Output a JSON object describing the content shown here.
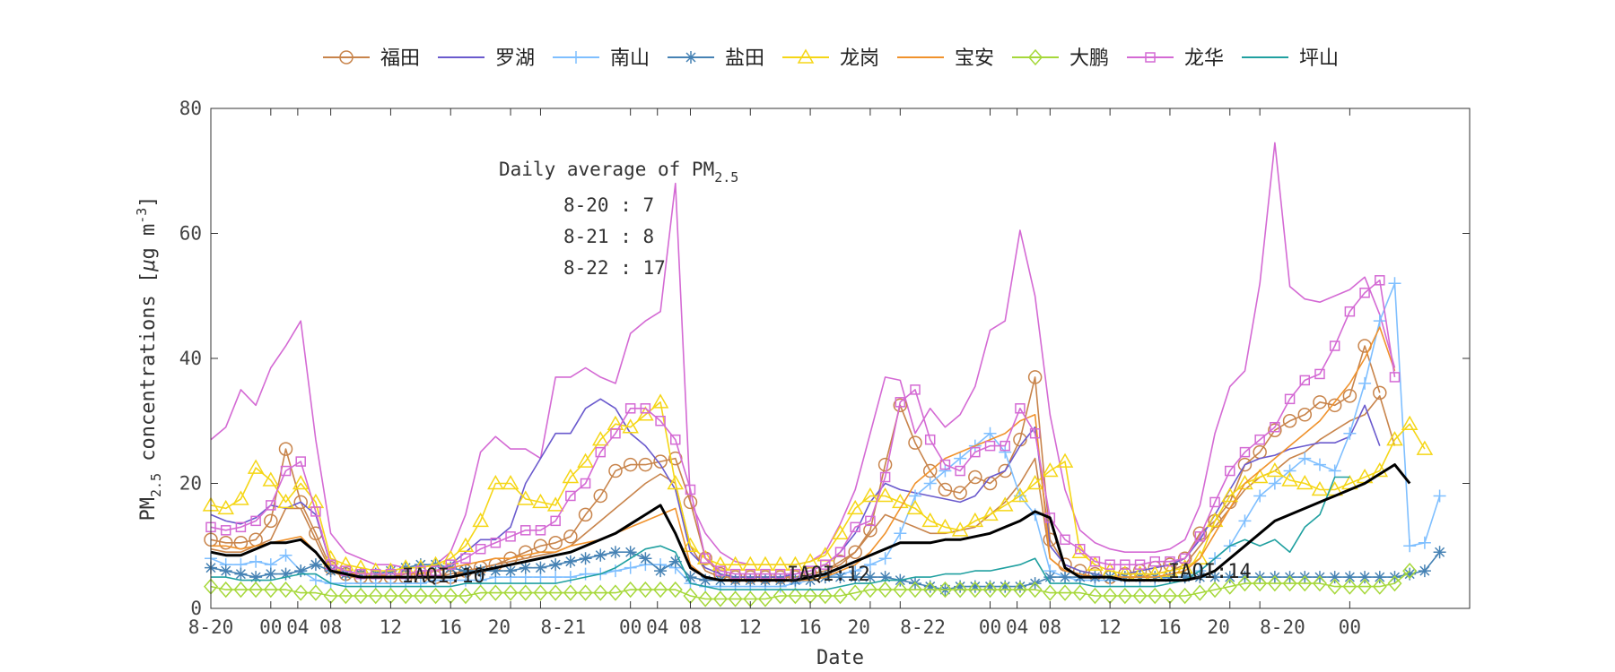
{
  "chart_data": {
    "type": "line",
    "xlabel": "Date",
    "ylabel_main": "PM",
    "ylabel_sub": "2.5",
    "ylabel_rest": " concentrations [",
    "ylabel_mu": "μ",
    "ylabel_unit": "g m",
    "ylabel_exp": "-3",
    "ylabel_close": "]",
    "ylim": [
      0,
      80
    ],
    "yticks": [
      0,
      20,
      40,
      60,
      80
    ],
    "xlim": [
      0,
      84
    ],
    "xtick_labels": [
      "8-20",
      "00",
      "04",
      "08",
      "12",
      "16",
      "20",
      "8-21",
      "00",
      "04",
      "08",
      "12",
      "16",
      "20",
      "8-22",
      "00",
      "04",
      "08",
      "12",
      "16",
      "20",
      "8-20",
      "00"
    ],
    "grid": false,
    "legend_position": "top",
    "annotation": {
      "title_main": "Daily average of PM",
      "title_sub": "2.5",
      "lines": [
        "8-20 : 7",
        "8-21 : 8",
        "8-22 : 17"
      ]
    },
    "iaqi_labels": [
      "IAQI:10",
      "IAQI:12",
      "IAQI:14"
    ],
    "series": [
      {
        "name": "福田",
        "color": "#c8844b",
        "marker": "circle",
        "values": [
          11,
          10.5,
          10.5,
          11,
          14,
          25.5,
          17,
          12,
          6.5,
          5.5,
          5,
          5,
          5,
          5,
          5,
          5,
          5,
          6,
          6.5,
          7,
          8,
          9,
          10,
          10.5,
          11.5,
          15,
          18,
          22,
          23,
          23,
          23.5,
          24,
          17,
          8,
          5.5,
          5,
          5,
          5,
          5,
          5,
          5.5,
          6,
          7.5,
          9,
          12.5,
          23,
          32.5,
          26.5,
          22,
          19,
          18.5,
          21,
          20,
          22,
          27,
          37,
          11,
          7,
          6,
          5.5,
          5,
          5.5,
          6,
          6.5,
          7,
          8,
          12,
          14,
          17,
          23,
          25,
          28.5,
          30,
          31,
          33,
          32.5,
          34,
          42,
          34.5
        ]
      },
      {
        "name": "罗湖",
        "color": "#6a5acd",
        "marker": "none",
        "values": [
          15,
          14,
          13.5,
          14.5,
          16.5,
          16,
          17,
          15,
          7,
          6,
          5.5,
          5.5,
          5,
          5.5,
          6,
          6,
          7,
          9,
          11,
          11,
          13,
          20,
          24,
          28,
          28,
          32,
          33.5,
          32,
          28,
          26,
          23,
          19,
          9,
          6.5,
          5.5,
          5,
          5,
          5,
          5,
          5.5,
          6,
          7,
          9,
          12,
          17,
          20,
          19,
          18.5,
          18,
          17.5,
          17,
          18,
          21,
          22,
          26,
          29,
          10,
          7,
          6,
          5.5,
          5,
          5.5,
          6,
          6.5,
          7,
          8,
          11,
          15,
          19,
          23,
          24,
          24.5,
          25.5,
          26,
          26.5,
          26.5,
          27.5,
          32.5,
          26
        ]
      },
      {
        "name": "南山",
        "color": "#7fbfff",
        "marker": "plus",
        "values": [
          8,
          7,
          7,
          7.5,
          7,
          8.5,
          6,
          4.5,
          4,
          4,
          4,
          4,
          4,
          4,
          4,
          4.5,
          4.5,
          4.5,
          4.5,
          5,
          5,
          5,
          5,
          5,
          5,
          5.5,
          5.5,
          6,
          6.5,
          7,
          7,
          6.5,
          4,
          3.5,
          3.5,
          3.5,
          3.5,
          3.5,
          3.5,
          4,
          4.5,
          5,
          5.5,
          6,
          7,
          8,
          12,
          18,
          20,
          22,
          24,
          26,
          28,
          25,
          18,
          15,
          6,
          5,
          4.5,
          4.5,
          4.5,
          4.5,
          4.5,
          4.5,
          5,
          5,
          6,
          8,
          10,
          14,
          18,
          20,
          22,
          24,
          23,
          22,
          28,
          36,
          46,
          52,
          10,
          10.5,
          18
        ]
      },
      {
        "name": "盐田",
        "color": "#4682b4",
        "marker": "asterisk",
        "values": [
          6.5,
          6,
          5.5,
          5,
          5.5,
          5.5,
          6,
          7,
          6,
          5.5,
          5.5,
          5.5,
          6,
          6.5,
          7,
          7,
          6.5,
          6,
          6,
          6,
          6,
          6.5,
          6.5,
          7,
          7.5,
          8,
          8.5,
          9,
          9,
          8,
          6,
          7.5,
          5,
          4.5,
          4.5,
          4.5,
          4.5,
          4.5,
          4.5,
          4.5,
          4.5,
          5,
          5,
          5,
          5,
          5,
          4.5,
          4,
          3.5,
          3,
          3.5,
          3.5,
          3.5,
          3.5,
          3.5,
          4,
          5,
          5,
          5,
          5,
          5,
          5,
          5,
          5,
          5,
          5,
          5,
          5,
          5,
          5,
          5,
          5,
          5,
          5,
          5,
          5,
          5,
          5,
          5,
          5,
          5.5,
          6,
          9
        ]
      },
      {
        "name": "龙岗",
        "color": "#f5d616",
        "marker": "triangle",
        "values": [
          16.5,
          16,
          17.5,
          22.5,
          20.5,
          17,
          20,
          17,
          8,
          7,
          6.5,
          6,
          6,
          6.5,
          6.5,
          7,
          8,
          10,
          14,
          20,
          20,
          17.5,
          17,
          16.5,
          21,
          23.5,
          27,
          29.5,
          29,
          31,
          33,
          20,
          10,
          8,
          7,
          7,
          7,
          7,
          7,
          7,
          7.5,
          8.5,
          12,
          16,
          18,
          18,
          17,
          16,
          14,
          13,
          12.5,
          14,
          15,
          16.5,
          18,
          20,
          22,
          23.5,
          9,
          7,
          6,
          5.5,
          5.5,
          5.5,
          6,
          6.5,
          8,
          14,
          18,
          20,
          21,
          22,
          20.5,
          20,
          19,
          19,
          20,
          21,
          22,
          27,
          29.5,
          25.5
        ]
      },
      {
        "name": "宝安",
        "color": "#f0922c",
        "marker": "none",
        "values": [
          10,
          10,
          9.5,
          10,
          10.5,
          11,
          11.5,
          9,
          6,
          5.5,
          5.5,
          5.5,
          5,
          5.5,
          5.5,
          6,
          6.5,
          7,
          7.5,
          8,
          8,
          8.5,
          9,
          9,
          10,
          10.5,
          11,
          12,
          13,
          14,
          15,
          16,
          7,
          5,
          4.5,
          4.5,
          4.5,
          4.5,
          4.5,
          4.5,
          4.5,
          5,
          6,
          7,
          9,
          12,
          16,
          20,
          22,
          24,
          25,
          26,
          27,
          28,
          30,
          31,
          8,
          6,
          5.5,
          5,
          5,
          5,
          5,
          5,
          5.5,
          6,
          8,
          12,
          16,
          20,
          22,
          24,
          26,
          28,
          30,
          33,
          36,
          40,
          45,
          38
        ]
      },
      {
        "name": "大鹏",
        "color": "#a6d83a",
        "marker": "diamond",
        "values": [
          3.5,
          3,
          3,
          3,
          3,
          3,
          2.5,
          2.5,
          2,
          2,
          2,
          2,
          2,
          2,
          2,
          2,
          2,
          2,
          2.5,
          2.5,
          2.5,
          2.5,
          2.5,
          2.5,
          2.5,
          2.5,
          2.5,
          2.5,
          3,
          3,
          3,
          3,
          2,
          1.5,
          1.5,
          1.5,
          1.5,
          1.5,
          2,
          2,
          2,
          2,
          2,
          2.5,
          3,
          3,
          3,
          3,
          3,
          3,
          3,
          3,
          3,
          3,
          3,
          3,
          2.5,
          2.5,
          2.5,
          2,
          2,
          2,
          2,
          2,
          2,
          2,
          2.5,
          3,
          3.5,
          4,
          4,
          4,
          4,
          4,
          4,
          3.5,
          3.5,
          3.5,
          3.5,
          4,
          6
        ]
      },
      {
        "name": "龙华",
        "color": "#d46ad4",
        "marker": "square",
        "values": [
          13,
          12.5,
          13,
          14,
          16.5,
          22,
          23.5,
          15.5,
          7,
          6,
          5.5,
          5.5,
          5.5,
          5.5,
          6,
          6,
          7,
          8,
          9.5,
          10.5,
          11.5,
          12.5,
          12.5,
          14,
          18,
          20,
          25,
          28,
          32,
          32,
          30,
          27,
          19,
          8,
          6,
          5.5,
          5.5,
          5.5,
          5.5,
          5.5,
          6,
          7,
          9,
          13,
          14,
          21,
          33,
          35,
          27,
          23,
          22,
          25,
          26,
          26,
          32,
          28,
          14.5,
          11,
          9.5,
          7.5,
          7,
          7,
          7,
          7.5,
          7.5,
          8,
          11.5,
          17,
          22,
          25,
          27,
          29,
          33.5,
          36.5,
          37.5,
          42,
          47.5,
          50.5,
          52.5,
          37
        ]
      },
      {
        "name": "坪山",
        "color": "#20a0a0",
        "marker": "none",
        "values": [
          5,
          5,
          4.5,
          4.5,
          4.5,
          5,
          5.5,
          5.5,
          4,
          3.5,
          3.5,
          3.5,
          3.5,
          3.5,
          3.5,
          3.5,
          3.5,
          4,
          4,
          4,
          4,
          4,
          4,
          4,
          4.5,
          5,
          5.5,
          6.5,
          8,
          9.5,
          10,
          9,
          4,
          3.5,
          3,
          3,
          3,
          3,
          3,
          3,
          3,
          3,
          3.5,
          4,
          4,
          4.5,
          4.5,
          5,
          5,
          5.5,
          5.5,
          6,
          6,
          6.5,
          7,
          8,
          4,
          4,
          4,
          3.5,
          3.5,
          3.5,
          3.5,
          3.5,
          4,
          4.5,
          6,
          8,
          10,
          11,
          10,
          11,
          9,
          13,
          15,
          21,
          21
        ]
      },
      {
        "name": "",
        "color": "#d46ad4",
        "marker": "none",
        "values": [
          27,
          29,
          35,
          32.5,
          38.5,
          42,
          46,
          27,
          12,
          9,
          8,
          7,
          7,
          6.5,
          6.5,
          7,
          9,
          15,
          25,
          27.5,
          25.5,
          25.5,
          24,
          37,
          37,
          38.5,
          37,
          36,
          44,
          46,
          47.5,
          68,
          17,
          12,
          9,
          7.5,
          7,
          7,
          7,
          7,
          7.5,
          9,
          13.5,
          19,
          28,
          37,
          36.5,
          28,
          32,
          29,
          31,
          35.5,
          44.5,
          46,
          60.5,
          50,
          31,
          19,
          12.5,
          10.5,
          9.5,
          9,
          9,
          9,
          9.5,
          11,
          16.5,
          28,
          35.5,
          38,
          52,
          74.5,
          51.5,
          49.5,
          49,
          50,
          51,
          53,
          47,
          38.5
        ]
      },
      {
        "name": "",
        "color": "#c8844b",
        "marker": "none",
        "values": [
          9.5,
          9,
          9,
          10,
          11,
          16,
          16,
          11,
          6,
          5,
          5,
          5,
          5,
          5,
          5,
          5,
          5.5,
          6,
          6.5,
          7,
          7.5,
          8,
          8.5,
          9,
          10,
          12,
          14,
          16,
          18,
          20,
          21.5,
          20,
          10,
          6,
          5,
          5,
          5,
          5,
          5,
          5,
          5.5,
          6,
          7,
          9,
          12,
          15,
          14,
          13,
          12,
          12,
          12.5,
          13,
          15,
          17,
          20,
          24,
          8,
          6,
          5.5,
          5,
          5,
          5,
          5,
          5.5,
          6,
          7,
          10,
          13,
          16,
          19,
          21,
          22,
          24,
          25,
          27,
          28.5,
          30,
          31,
          34,
          26
        ]
      },
      {
        "name": "",
        "color": "#000000",
        "marker": "none",
        "width": 3,
        "values": [
          9,
          8.5,
          8.5,
          9.5,
          10.5,
          10.5,
          11,
          9,
          6,
          5.5,
          5,
          5,
          5,
          5,
          5,
          5,
          5,
          5.5,
          6,
          6.5,
          7,
          7.5,
          8,
          8.5,
          9,
          10,
          11,
          12,
          13.5,
          15,
          16.5,
          12,
          6.5,
          5,
          4.5,
          4.5,
          4.5,
          4.5,
          4.5,
          4.5,
          5,
          5.5,
          6.5,
          7.5,
          8.5,
          9.5,
          10.5,
          10.5,
          10.5,
          11,
          11,
          11.5,
          12,
          13,
          14,
          15.5,
          14.5,
          6.5,
          5,
          5,
          5,
          4.5,
          4.5,
          4.5,
          4.5,
          4.5,
          5,
          6,
          8,
          10,
          12,
          14,
          15,
          16,
          17,
          18,
          19,
          20,
          21.5,
          23,
          20
        ]
      }
    ]
  }
}
